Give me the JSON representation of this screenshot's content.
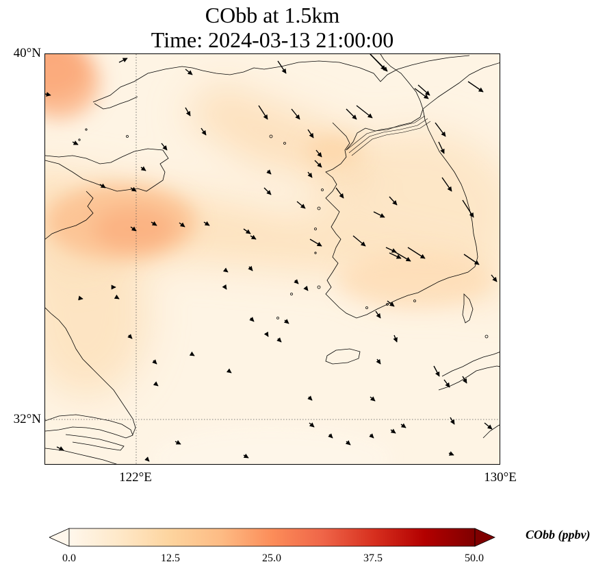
{
  "title": {
    "line1": "CObb at 1.5km",
    "line2": "Time: 2024-03-13 21:00:00"
  },
  "axes": {
    "lat_ticks": [
      {
        "label": "40°N",
        "value": 40
      },
      {
        "label": "32°N",
        "value": 32
      }
    ],
    "lon_ticks": [
      {
        "label": "122°E",
        "value": 122
      },
      {
        "label": "130°E",
        "value": 130
      }
    ],
    "lon_range": [
      120,
      130
    ],
    "lat_range": [
      31,
      40
    ],
    "gridlines": "dotted"
  },
  "colorbar": {
    "label": "CObb (ppbv)",
    "colormap": "OrRd",
    "range": [
      0.0,
      50.0
    ],
    "ticks": [
      "0.0",
      "12.5",
      "25.0",
      "37.5",
      "50.0"
    ],
    "extend": "both",
    "colors": [
      "#fff7ec",
      "#fee8c8",
      "#fdd49e",
      "#fdbb84",
      "#fc8d59",
      "#ef6548",
      "#d7301f",
      "#b30000",
      "#7f0000"
    ]
  },
  "chart_data": {
    "type": "heatmap",
    "variable": "CObb",
    "level": "1.5km",
    "time": "2024-03-13 21:00:00",
    "units": "ppbv",
    "field_features": [
      {
        "region": "northwest corner near 120.5°E 39.8°N",
        "value": 20
      },
      {
        "region": "plume centered near 121.5°E 36.5°N",
        "value": 14
      },
      {
        "region": "band across Yellow Sea near 124°E 35.5°N",
        "value": 7
      },
      {
        "region": "Korean peninsula north near 127°E 38°N",
        "value": 6
      },
      {
        "region": "East China Sea south",
        "value": 2
      }
    ],
    "wind_vectors": "quiver arrows, predominantly northwesterly over the Korean peninsula and light winds elsewhere"
  }
}
